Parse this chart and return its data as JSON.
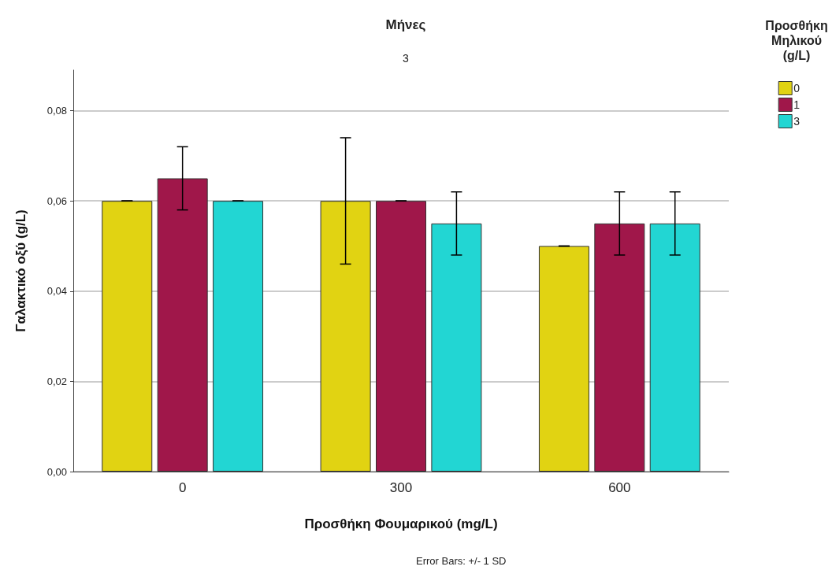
{
  "chart_data": {
    "type": "bar",
    "title": "Μήνες",
    "subtitle": "3",
    "xlabel": "Προσθήκη Φουμαρικού (mg/L)",
    "ylabel": "Γαλακτικό οξύ (g/L)",
    "legend_title": "Προσθήκη Μηλικού (g/L)",
    "categories": [
      "0",
      "300",
      "600"
    ],
    "series": [
      {
        "name": "0",
        "color": "#e1d312",
        "values": [
          0.06,
          0.06,
          0.05
        ],
        "errors": [
          0,
          0.014,
          0
        ]
      },
      {
        "name": "1",
        "color": "#a0174a",
        "values": [
          0.065,
          0.06,
          0.055
        ],
        "errors": [
          0.007,
          0,
          0.007
        ]
      },
      {
        "name": "3",
        "color": "#22d6d3",
        "values": [
          0.06,
          0.055,
          0.055
        ],
        "errors": [
          0,
          0.007,
          0.007
        ]
      }
    ],
    "ylim": [
      0,
      0.089
    ],
    "yticks": [
      {
        "value": 0,
        "label": "0,00"
      },
      {
        "value": 0.02,
        "label": "0,02"
      },
      {
        "value": 0.04,
        "label": "0,04"
      },
      {
        "value": 0.06,
        "label": "0,06"
      },
      {
        "value": 0.08,
        "label": "0,08"
      }
    ],
    "grid": "y",
    "legend": "top right",
    "annotations": [
      "Error Bars: +/- 1 SD"
    ]
  }
}
